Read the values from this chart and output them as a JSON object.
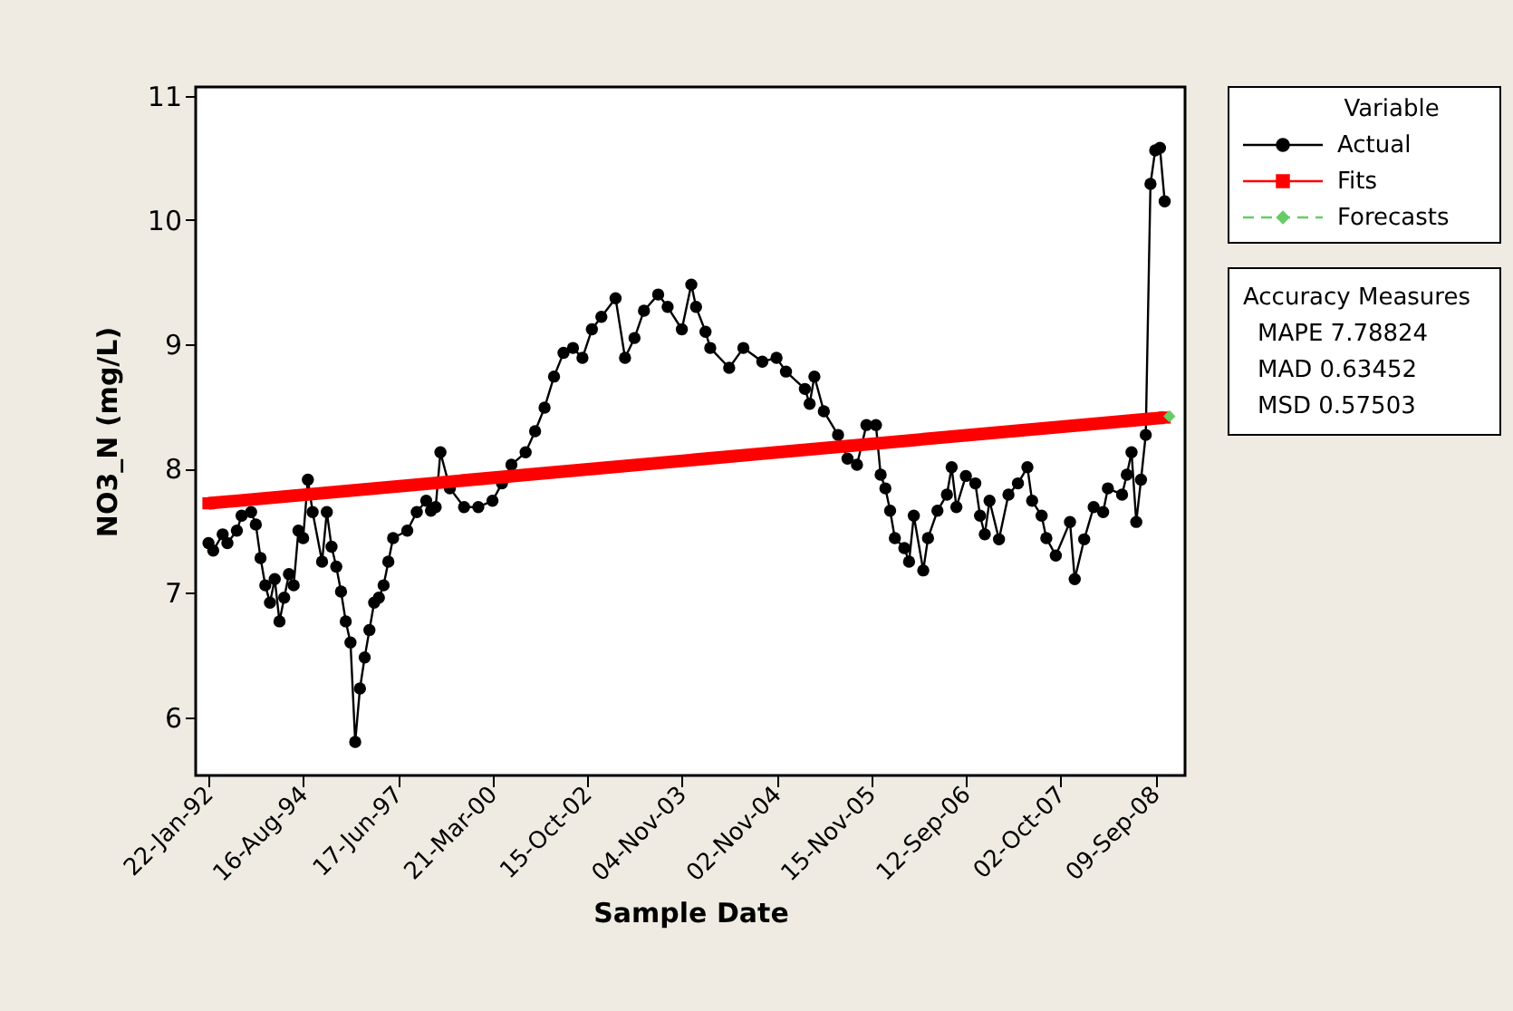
{
  "chart_data": {
    "type": "line",
    "xlabel": "Sample Date",
    "ylabel": "NO3_N (mg/L)",
    "legend_title": "Variable",
    "categories": [
      "22-Jan-92",
      null,
      null,
      null,
      null,
      null,
      null,
      null,
      null,
      null,
      null,
      null,
      null,
      null,
      null,
      null,
      null,
      null,
      null,
      null,
      "16-Aug-94",
      null,
      null,
      null,
      null,
      null,
      null,
      null,
      null,
      null,
      null,
      null,
      null,
      null,
      null,
      null,
      null,
      null,
      null,
      null,
      "17-Jun-97",
      null,
      null,
      null,
      null,
      null,
      null,
      null,
      null,
      null,
      null,
      null,
      null,
      null,
      null,
      null,
      null,
      null,
      null,
      null,
      "21-Mar-00",
      null,
      null,
      null,
      null,
      null,
      null,
      null,
      null,
      null,
      null,
      null,
      null,
      null,
      null,
      null,
      null,
      null,
      null,
      null,
      "15-Oct-02",
      null,
      null,
      null,
      null,
      null,
      null,
      null,
      null,
      null,
      null,
      null,
      null,
      null,
      null,
      null,
      null,
      null,
      null,
      null,
      "04-Nov-03",
      null,
      null,
      null,
      null,
      null,
      null,
      null,
      null,
      null,
      null,
      null,
      null,
      null,
      null,
      null,
      null,
      null,
      null,
      null,
      "02-Nov-04",
      null,
      null,
      null,
      null,
      null,
      null,
      null,
      null,
      null,
      null,
      null,
      null,
      null,
      null,
      null,
      null,
      null,
      null,
      null,
      "15-Nov-05",
      null,
      null,
      null,
      null,
      null,
      null,
      null,
      null,
      null,
      null,
      null,
      null,
      null,
      null,
      null,
      null,
      null,
      null,
      null,
      "12-Sep-06",
      null,
      null,
      null,
      null,
      null,
      null,
      null,
      null,
      null,
      null,
      null,
      null,
      null,
      null,
      null,
      null,
      null,
      null,
      null,
      "02-Oct-07",
      null,
      null,
      null,
      null,
      null,
      null,
      null,
      null,
      null,
      null,
      null,
      null,
      null,
      null,
      null,
      null,
      null,
      null,
      null,
      "09-Sep-08",
      null,
      null,
      null
    ],
    "ylim": [
      5.53,
      11.07
    ],
    "yticks": [
      6,
      7,
      8,
      9,
      10,
      11
    ],
    "grid": false,
    "legend": "right",
    "series": [
      {
        "name": "Actual",
        "type": "line",
        "color": "#000000",
        "marker": "circle",
        "line_style": "solid",
        "values": [
          7.4,
          7.34,
          null,
          7.47,
          7.4,
          null,
          7.5,
          7.62,
          null,
          7.65,
          7.55,
          7.28,
          7.06,
          6.92,
          7.11,
          6.77,
          6.96,
          7.15,
          7.06,
          7.5,
          7.44,
          7.91,
          7.65,
          null,
          7.25,
          7.65,
          7.37,
          7.21,
          7.01,
          6.77,
          6.6,
          5.8,
          6.23,
          6.48,
          6.7,
          6.92,
          6.96,
          7.06,
          7.25,
          7.44,
          null,
          null,
          7.5,
          null,
          7.65,
          null,
          7.74,
          7.66,
          7.69,
          8.13,
          null,
          7.84,
          null,
          null,
          7.69,
          null,
          null,
          7.69,
          null,
          null,
          7.74,
          null,
          7.88,
          null,
          8.03,
          null,
          null,
          8.13,
          null,
          8.3,
          null,
          8.49,
          null,
          8.74,
          null,
          8.93,
          null,
          8.97,
          null,
          8.89,
          null,
          9.12,
          null,
          9.22,
          null,
          null,
          9.37,
          null,
          8.89,
          null,
          9.05,
          null,
          9.27,
          null,
          null,
          9.4,
          null,
          9.3,
          null,
          null,
          9.12,
          null,
          9.48,
          9.3,
          null,
          9.1,
          8.97,
          null,
          null,
          null,
          8.81,
          null,
          null,
          8.97,
          null,
          null,
          null,
          8.86,
          null,
          null,
          8.89,
          null,
          8.78,
          null,
          null,
          null,
          8.64,
          8.52,
          8.74,
          null,
          8.46,
          null,
          null,
          8.27,
          null,
          8.08,
          null,
          8.03,
          null,
          8.35,
          null,
          8.35,
          7.95,
          7.84,
          7.66,
          7.44,
          null,
          7.36,
          7.25,
          7.62,
          null,
          7.18,
          7.44,
          null,
          7.66,
          null,
          7.79,
          8.01,
          7.69,
          null,
          7.94,
          null,
          7.88,
          7.62,
          7.47,
          7.74,
          null,
          7.43,
          null,
          7.79,
          null,
          7.88,
          null,
          8.01,
          7.74,
          null,
          7.62,
          7.44,
          null,
          7.3,
          null,
          null,
          7.57,
          7.11,
          null,
          7.43,
          null,
          7.69,
          null,
          7.65,
          7.84,
          null,
          null,
          7.79,
          7.95,
          8.13,
          7.57,
          7.91,
          8.27,
          10.29,
          10.56,
          10.58,
          10.15,
          null
        ]
      },
      {
        "name": "Fits",
        "type": "line",
        "color": "#ff0000",
        "marker": "square",
        "line_style": "solid",
        "values": [
          7.72,
          null,
          null,
          null,
          null,
          null,
          null,
          null,
          null,
          null,
          null,
          null,
          null,
          null,
          null,
          null,
          null,
          null,
          null,
          null,
          null,
          null,
          null,
          null,
          null,
          null,
          null,
          null,
          null,
          null,
          null,
          null,
          null,
          null,
          null,
          null,
          null,
          null,
          null,
          null,
          null,
          null,
          null,
          null,
          null,
          null,
          null,
          null,
          null,
          null,
          null,
          null,
          null,
          null,
          null,
          null,
          null,
          null,
          null,
          null,
          null,
          null,
          null,
          null,
          null,
          null,
          null,
          null,
          null,
          null,
          null,
          null,
          null,
          null,
          null,
          null,
          null,
          null,
          null,
          null,
          null,
          null,
          null,
          null,
          null,
          null,
          null,
          null,
          null,
          null,
          null,
          null,
          null,
          null,
          null,
          null,
          null,
          null,
          null,
          null,
          null,
          null,
          null,
          null,
          null,
          null,
          null,
          null,
          null,
          null,
          null,
          null,
          null,
          null,
          null,
          null,
          null,
          null,
          null,
          null,
          null,
          null,
          null,
          null,
          null,
          null,
          null,
          null,
          null,
          null,
          null,
          null,
          null,
          null,
          null,
          null,
          null,
          null,
          null,
          null,
          null,
          null,
          null,
          null,
          null,
          null,
          null,
          null,
          null,
          null,
          null,
          null,
          null,
          null,
          null,
          null,
          null,
          null,
          null,
          null,
          null,
          null,
          null,
          null,
          null,
          null,
          null,
          null,
          null,
          null,
          null,
          null,
          null,
          null,
          null,
          null,
          null,
          null,
          null,
          null,
          null,
          null,
          null,
          null,
          null,
          null,
          null,
          null,
          null,
          null,
          null,
          null,
          null,
          null,
          null,
          null,
          null,
          null,
          null,
          null,
          null,
          null,
          8.41,
          null
        ]
      },
      {
        "name": "Forecasts",
        "type": "scatter",
        "color": "#66cc66",
        "marker": "diamond",
        "line_style": "dashed",
        "values": [
          null,
          null,
          null,
          null,
          null,
          null,
          null,
          null,
          null,
          null,
          null,
          null,
          null,
          null,
          null,
          null,
          null,
          null,
          null,
          null,
          null,
          null,
          null,
          null,
          null,
          null,
          null,
          null,
          null,
          null,
          null,
          null,
          null,
          null,
          null,
          null,
          null,
          null,
          null,
          null,
          null,
          null,
          null,
          null,
          null,
          null,
          null,
          null,
          null,
          null,
          null,
          null,
          null,
          null,
          null,
          null,
          null,
          null,
          null,
          null,
          null,
          null,
          null,
          null,
          null,
          null,
          null,
          null,
          null,
          null,
          null,
          null,
          null,
          null,
          null,
          null,
          null,
          null,
          null,
          null,
          null,
          null,
          null,
          null,
          null,
          null,
          null,
          null,
          null,
          null,
          null,
          null,
          null,
          null,
          null,
          null,
          null,
          null,
          null,
          null,
          null,
          null,
          null,
          null,
          null,
          null,
          null,
          null,
          null,
          null,
          null,
          null,
          null,
          null,
          null,
          null,
          null,
          null,
          null,
          null,
          null,
          null,
          null,
          null,
          null,
          null,
          null,
          null,
          null,
          null,
          null,
          null,
          null,
          null,
          null,
          null,
          null,
          null,
          null,
          null,
          null,
          null,
          null,
          null,
          null,
          null,
          null,
          null,
          null,
          null,
          null,
          null,
          null,
          null,
          null,
          null,
          null,
          null,
          null,
          null,
          null,
          null,
          null,
          null,
          null,
          null,
          null,
          null,
          null,
          null,
          null,
          null,
          null,
          null,
          null,
          null,
          null,
          null,
          null,
          null,
          null,
          null,
          null,
          null,
          null,
          null,
          null,
          null,
          null,
          null,
          null,
          null,
          null,
          null,
          null,
          null,
          null,
          null,
          null,
          null,
          null,
          null,
          null,
          8.42
        ]
      }
    ],
    "annotations": [
      "Accuracy Measures",
      "MAPE     7.78824",
      "MAD      0.63452",
      "MSD      0.57503"
    ]
  }
}
